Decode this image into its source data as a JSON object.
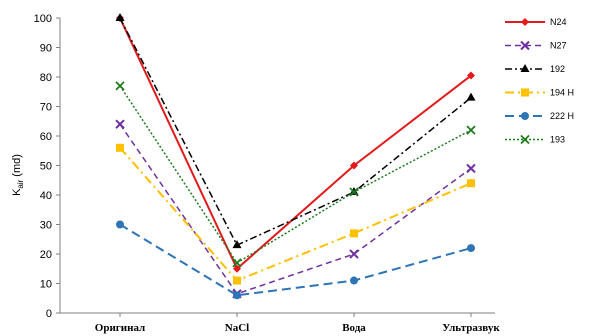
{
  "chart_data": {
    "type": "line",
    "categories": [
      "Оригинал",
      "NaCl",
      "Вода",
      "Ультразвук"
    ],
    "ylabel_main": "K",
    "ylabel_sub": "air",
    "ylabel_unit": "(md)",
    "ylim": [
      0,
      100
    ],
    "yticks": [
      0,
      10,
      20,
      30,
      40,
      50,
      60,
      70,
      80,
      90,
      100
    ],
    "grid": false,
    "legend_position": "right",
    "series": [
      {
        "name": "N24",
        "values": [
          100,
          15,
          50,
          80.5
        ],
        "color": "#e31a1c",
        "dash": "",
        "marker": "diamond",
        "width": 2
      },
      {
        "name": "N27",
        "values": [
          64,
          6.5,
          20,
          49
        ],
        "color": "#7030a0",
        "dash": "6,4",
        "marker": "cross",
        "width": 1.5
      },
      {
        "name": "192",
        "values": [
          100,
          23,
          41,
          73
        ],
        "color": "#000000",
        "dash": "7,3,2,3",
        "marker": "triangle",
        "width": 1.5
      },
      {
        "name": "194 H",
        "values": [
          56,
          11,
          27,
          44
        ],
        "color": "#ffc000",
        "dash": "9,4,2,4",
        "marker": "square",
        "width": 2
      },
      {
        "name": "222 H",
        "values": [
          30,
          6,
          11,
          22
        ],
        "color": "#2e75b6",
        "dash": "9,5",
        "marker": "circle",
        "width": 2
      },
      {
        "name": "193",
        "values": [
          77,
          17,
          41,
          62
        ],
        "color": "#1e7b1e",
        "dash": "2,2",
        "marker": "x",
        "width": 1.5
      }
    ]
  }
}
